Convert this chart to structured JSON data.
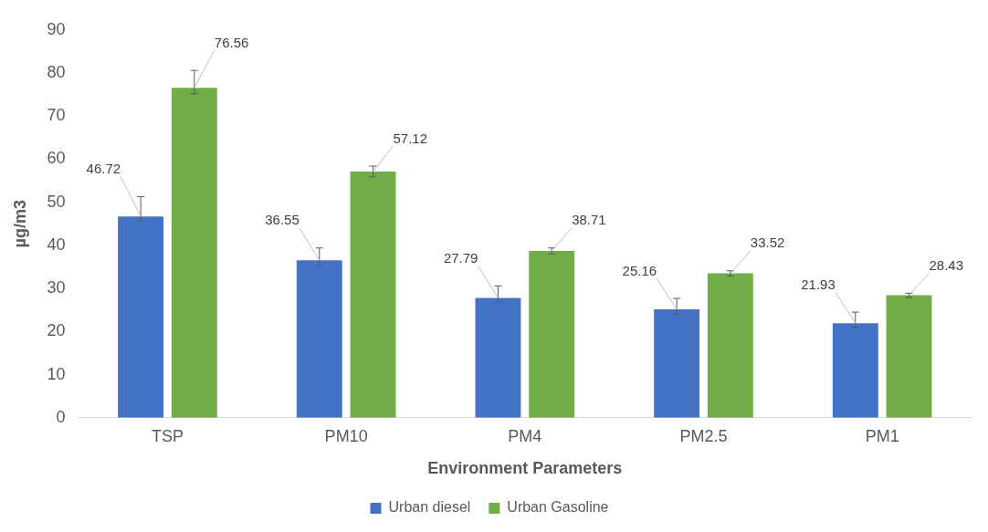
{
  "chart_data": {
    "type": "bar",
    "xlabel": "Environment Parameters",
    "ylabel": "µg/m3",
    "categories": [
      "TSP",
      "PM10",
      "PM4",
      "PM2.5",
      "PM1"
    ],
    "series": [
      {
        "name": "Urban diesel",
        "color": "#4472c4",
        "values": [
          46.72,
          36.55,
          27.79,
          25.16,
          21.93
        ],
        "errors": [
          [
            45.6,
            51.3
          ],
          [
            35.3,
            39.4
          ],
          [
            26.8,
            30.6
          ],
          [
            24.1,
            27.7
          ],
          [
            20.9,
            24.5
          ]
        ]
      },
      {
        "name": "Urban Gasoline",
        "color": "#70ad47",
        "values": [
          76.56,
          57.12,
          38.71,
          33.52,
          28.43
        ],
        "errors": [
          [
            75.2,
            80.6
          ],
          [
            55.9,
            58.4
          ],
          [
            38.0,
            39.4
          ],
          [
            32.9,
            34.1
          ],
          [
            27.9,
            28.9
          ]
        ]
      }
    ],
    "ylim": [
      0,
      90
    ],
    "yticks": [
      0,
      10,
      20,
      30,
      40,
      50,
      60,
      70,
      80,
      90
    ],
    "grid": false,
    "legend": "bottom",
    "data_labels": true
  }
}
